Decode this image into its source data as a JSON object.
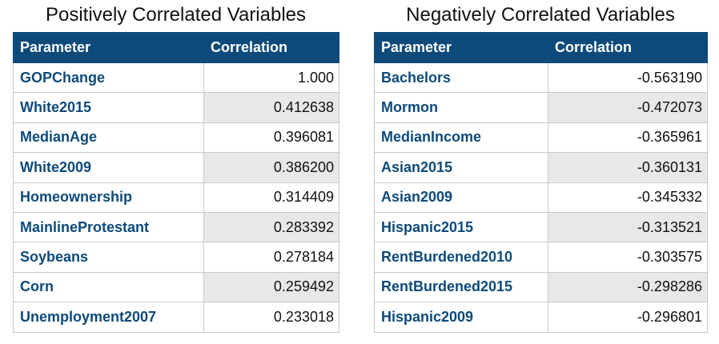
{
  "positive": {
    "title": "Positively Correlated Variables",
    "headers": [
      "Parameter",
      "Correlation"
    ],
    "rows": [
      {
        "parameter": "GOPChange",
        "correlation": "1.000"
      },
      {
        "parameter": "White2015",
        "correlation": "0.412638"
      },
      {
        "parameter": "MedianAge",
        "correlation": "0.396081"
      },
      {
        "parameter": "White2009",
        "correlation": "0.386200"
      },
      {
        "parameter": "Homeownership",
        "correlation": "0.314409"
      },
      {
        "parameter": "MainlineProtestant",
        "correlation": "0.283392"
      },
      {
        "parameter": "Soybeans",
        "correlation": "0.278184"
      },
      {
        "parameter": "Corn",
        "correlation": "0.259492"
      },
      {
        "parameter": "Unemployment2007",
        "correlation": "0.233018"
      }
    ]
  },
  "negative": {
    "title": "Negatively Correlated Variables",
    "headers": [
      "Parameter",
      "Correlation"
    ],
    "rows": [
      {
        "parameter": "Bachelors",
        "correlation": "-0.563190"
      },
      {
        "parameter": "Mormon",
        "correlation": "-0.472073"
      },
      {
        "parameter": "MedianIncome",
        "correlation": "-0.365961"
      },
      {
        "parameter": "Asian2015",
        "correlation": "-0.360131"
      },
      {
        "parameter": "Asian2009",
        "correlation": "-0.345332"
      },
      {
        "parameter": "Hispanic2015",
        "correlation": "-0.313521"
      },
      {
        "parameter": "RentBurdened2010",
        "correlation": "-0.303575"
      },
      {
        "parameter": "RentBurdened2015",
        "correlation": "-0.298286"
      },
      {
        "parameter": "Hispanic2009",
        "correlation": "-0.296801"
      }
    ]
  },
  "colors": {
    "header_bg": "#0d4a7a",
    "header_text": "#ffffff",
    "parameter_text": "#0d4a7a",
    "alt_row_bg": "#e8e8e8",
    "border": "#c9c9c9"
  }
}
